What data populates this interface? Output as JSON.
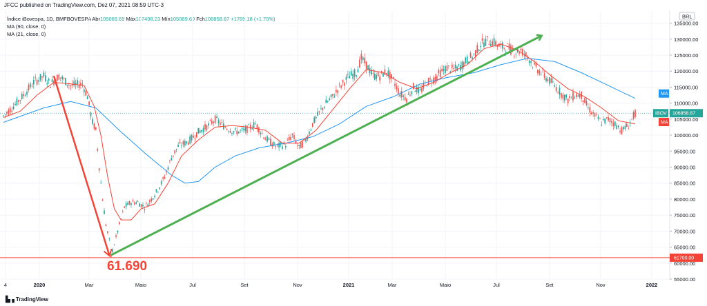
{
  "publisher_line": "JFCC published on TradingView.com, Dez 07, 2021 08:59 UTC-3",
  "legend": {
    "symbol": "Índice iBovespa, 1D, BMFBOVESPA",
    "open_label": "Abr",
    "open": "105069.69",
    "high_label": "Máx",
    "high": "107498.23",
    "low_label": "Mín",
    "low": "105069.69",
    "close_label": "Fch",
    "close": "106858.87",
    "change": "+1789.18 (+1.70%)",
    "ma90": "MA (90, close, 0)",
    "ma21": "MA (21, close, 0)"
  },
  "footer_brand": "TradingView",
  "annotation_text": "61.690",
  "colors": {
    "up": "#26a69a",
    "down": "#ef5350",
    "ma90": "#2196f3",
    "ma21": "#f44336",
    "trend_green": "#4caf50",
    "trend_red": "#f44336",
    "support": "#f44336",
    "last_price": "#26a69a"
  },
  "chart_data": {
    "type": "line",
    "currency": "BRL",
    "x_tick_labels": [
      "4",
      "2020",
      "Mar",
      "Maio",
      "Jul",
      "Set",
      "Nov",
      "2021",
      "Mar",
      "Maio",
      "Jul",
      "Set",
      "Nov",
      "2022"
    ],
    "y_ticks": [
      55000,
      60000,
      65000,
      70000,
      75000,
      80000,
      85000,
      90000,
      95000,
      100000,
      105000,
      110000,
      115000,
      120000,
      125000,
      130000,
      135000
    ],
    "ylim": [
      55000,
      139000
    ],
    "price_points": [
      {
        "x": 0,
        "y": 106000
      },
      {
        "x": 5,
        "y": 108500
      },
      {
        "x": 12,
        "y": 112500
      },
      {
        "x": 18,
        "y": 116500
      },
      {
        "x": 24,
        "y": 118500
      },
      {
        "x": 28,
        "y": 116000
      },
      {
        "x": 33,
        "y": 118500
      },
      {
        "x": 40,
        "y": 115500
      },
      {
        "x": 47,
        "y": 116000
      },
      {
        "x": 50,
        "y": 112000
      },
      {
        "x": 53,
        "y": 104000
      },
      {
        "x": 55,
        "y": 101500
      },
      {
        "x": 57,
        "y": 90000
      },
      {
        "x": 59,
        "y": 80000
      },
      {
        "x": 61,
        "y": 72000
      },
      {
        "x": 63,
        "y": 67000
      },
      {
        "x": 64,
        "y": 62000
      },
      {
        "x": 66,
        "y": 66000
      },
      {
        "x": 69,
        "y": 72000
      },
      {
        "x": 72,
        "y": 77500
      },
      {
        "x": 76,
        "y": 79000
      },
      {
        "x": 80,
        "y": 79000
      },
      {
        "x": 84,
        "y": 77500
      },
      {
        "x": 88,
        "y": 80000
      },
      {
        "x": 92,
        "y": 83000
      },
      {
        "x": 96,
        "y": 87000
      },
      {
        "x": 100,
        "y": 93000
      },
      {
        "x": 104,
        "y": 96500
      },
      {
        "x": 110,
        "y": 98000
      },
      {
        "x": 116,
        "y": 101000
      },
      {
        "x": 122,
        "y": 103000
      },
      {
        "x": 126,
        "y": 105000
      },
      {
        "x": 132,
        "y": 102500
      },
      {
        "x": 138,
        "y": 101000
      },
      {
        "x": 144,
        "y": 101500
      },
      {
        "x": 150,
        "y": 103500
      },
      {
        "x": 156,
        "y": 99000
      },
      {
        "x": 162,
        "y": 96500
      },
      {
        "x": 168,
        "y": 97000
      },
      {
        "x": 172,
        "y": 100000
      },
      {
        "x": 176,
        "y": 96000
      },
      {
        "x": 180,
        "y": 98500
      },
      {
        "x": 184,
        "y": 103500
      },
      {
        "x": 188,
        "y": 107000
      },
      {
        "x": 192,
        "y": 110000
      },
      {
        "x": 196,
        "y": 112000
      },
      {
        "x": 200,
        "y": 115000
      },
      {
        "x": 206,
        "y": 118500
      },
      {
        "x": 210,
        "y": 119500
      },
      {
        "x": 213,
        "y": 124000
      },
      {
        "x": 216,
        "y": 122000
      },
      {
        "x": 220,
        "y": 118500
      },
      {
        "x": 224,
        "y": 118500
      },
      {
        "x": 228,
        "y": 120000
      },
      {
        "x": 232,
        "y": 117000
      },
      {
        "x": 236,
        "y": 113000
      },
      {
        "x": 240,
        "y": 111500
      },
      {
        "x": 244,
        "y": 115000
      },
      {
        "x": 248,
        "y": 113500
      },
      {
        "x": 252,
        "y": 116500
      },
      {
        "x": 256,
        "y": 117500
      },
      {
        "x": 260,
        "y": 119500
      },
      {
        "x": 264,
        "y": 121000
      },
      {
        "x": 268,
        "y": 120500
      },
      {
        "x": 272,
        "y": 121500
      },
      {
        "x": 276,
        "y": 123500
      },
      {
        "x": 280,
        "y": 125000
      },
      {
        "x": 284,
        "y": 128500
      },
      {
        "x": 288,
        "y": 129500
      },
      {
        "x": 292,
        "y": 129000
      },
      {
        "x": 296,
        "y": 127500
      },
      {
        "x": 300,
        "y": 127500
      },
      {
        "x": 304,
        "y": 126000
      },
      {
        "x": 308,
        "y": 126500
      },
      {
        "x": 312,
        "y": 124500
      },
      {
        "x": 316,
        "y": 121500
      },
      {
        "x": 320,
        "y": 119500
      },
      {
        "x": 324,
        "y": 117500
      },
      {
        "x": 328,
        "y": 115500
      },
      {
        "x": 332,
        "y": 113000
      },
      {
        "x": 336,
        "y": 111000
      },
      {
        "x": 340,
        "y": 112500
      },
      {
        "x": 344,
        "y": 112500
      },
      {
        "x": 348,
        "y": 108500
      },
      {
        "x": 352,
        "y": 106000
      },
      {
        "x": 356,
        "y": 104000
      },
      {
        "x": 360,
        "y": 105000
      },
      {
        "x": 364,
        "y": 103500
      },
      {
        "x": 368,
        "y": 101500
      },
      {
        "x": 372,
        "y": 103000
      },
      {
        "x": 376,
        "y": 106858.87
      }
    ],
    "series": [
      {
        "name": "MA (90, close, 0)",
        "points": [
          {
            "x": 0,
            "y": 104000
          },
          {
            "x": 24,
            "y": 108500
          },
          {
            "x": 40,
            "y": 110500
          },
          {
            "x": 55,
            "y": 108500
          },
          {
            "x": 70,
            "y": 101000
          },
          {
            "x": 85,
            "y": 94000
          },
          {
            "x": 100,
            "y": 87500
          },
          {
            "x": 108,
            "y": 85000
          },
          {
            "x": 116,
            "y": 85500
          },
          {
            "x": 126,
            "y": 90000
          },
          {
            "x": 138,
            "y": 93500
          },
          {
            "x": 152,
            "y": 96000
          },
          {
            "x": 168,
            "y": 97500
          },
          {
            "x": 184,
            "y": 99500
          },
          {
            "x": 200,
            "y": 103500
          },
          {
            "x": 216,
            "y": 109000
          },
          {
            "x": 232,
            "y": 112000
          },
          {
            "x": 248,
            "y": 116000
          },
          {
            "x": 264,
            "y": 118000
          },
          {
            "x": 280,
            "y": 119500
          },
          {
            "x": 296,
            "y": 122000
          },
          {
            "x": 312,
            "y": 124000
          },
          {
            "x": 328,
            "y": 123000
          },
          {
            "x": 344,
            "y": 119500
          },
          {
            "x": 360,
            "y": 115500
          },
          {
            "x": 376,
            "y": 111500
          }
        ]
      },
      {
        "name": "MA (21, close, 0)",
        "points": [
          {
            "x": 0,
            "y": 105500
          },
          {
            "x": 10,
            "y": 107500
          },
          {
            "x": 20,
            "y": 112500
          },
          {
            "x": 30,
            "y": 116500
          },
          {
            "x": 40,
            "y": 116000
          },
          {
            "x": 48,
            "y": 115500
          },
          {
            "x": 54,
            "y": 109000
          },
          {
            "x": 58,
            "y": 100000
          },
          {
            "x": 62,
            "y": 87000
          },
          {
            "x": 66,
            "y": 77000
          },
          {
            "x": 70,
            "y": 73500
          },
          {
            "x": 76,
            "y": 73500
          },
          {
            "x": 82,
            "y": 77000
          },
          {
            "x": 90,
            "y": 78500
          },
          {
            "x": 98,
            "y": 85000
          },
          {
            "x": 106,
            "y": 93500
          },
          {
            "x": 116,
            "y": 98500
          },
          {
            "x": 126,
            "y": 102500
          },
          {
            "x": 136,
            "y": 103000
          },
          {
            "x": 146,
            "y": 102500
          },
          {
            "x": 156,
            "y": 101500
          },
          {
            "x": 166,
            "y": 97500
          },
          {
            "x": 176,
            "y": 97500
          },
          {
            "x": 186,
            "y": 101500
          },
          {
            "x": 196,
            "y": 108000
          },
          {
            "x": 206,
            "y": 114500
          },
          {
            "x": 216,
            "y": 120500
          },
          {
            "x": 226,
            "y": 119500
          },
          {
            "x": 236,
            "y": 116500
          },
          {
            "x": 246,
            "y": 114500
          },
          {
            "x": 256,
            "y": 116500
          },
          {
            "x": 266,
            "y": 119500
          },
          {
            "x": 276,
            "y": 122000
          },
          {
            "x": 286,
            "y": 127000
          },
          {
            "x": 296,
            "y": 128500
          },
          {
            "x": 306,
            "y": 126500
          },
          {
            "x": 316,
            "y": 123000
          },
          {
            "x": 326,
            "y": 118500
          },
          {
            "x": 336,
            "y": 114500
          },
          {
            "x": 346,
            "y": 112000
          },
          {
            "x": 356,
            "y": 108500
          },
          {
            "x": 366,
            "y": 104500
          },
          {
            "x": 376,
            "y": 103500
          }
        ]
      }
    ],
    "drawn_lines": [
      {
        "name": "trend-red",
        "from": {
          "x": 30,
          "y": 118500
        },
        "to": {
          "x": 63,
          "y": 62500
        },
        "arrow": true
      },
      {
        "name": "trend-green",
        "from": {
          "x": 64,
          "y": 62500
        },
        "to": {
          "x": 320,
          "y": 131000
        },
        "arrow": true
      }
    ],
    "horizontal_lines": [
      {
        "name": "support",
        "y": 61700
      }
    ],
    "price_tags": [
      {
        "name": "ma90-tag",
        "text": "MA",
        "y": 113000,
        "color": "#2196f3"
      },
      {
        "name": "last-price-tag",
        "symbol": "IBOV",
        "text": "106858.87",
        "y": 106858.87,
        "color": "#26a69a"
      },
      {
        "name": "ma21-tag",
        "text": "MA",
        "y": 104100,
        "color": "#f44336"
      },
      {
        "name": "support-tag",
        "text": "61700.00",
        "y": 61700,
        "color": "#f44336"
      }
    ]
  }
}
